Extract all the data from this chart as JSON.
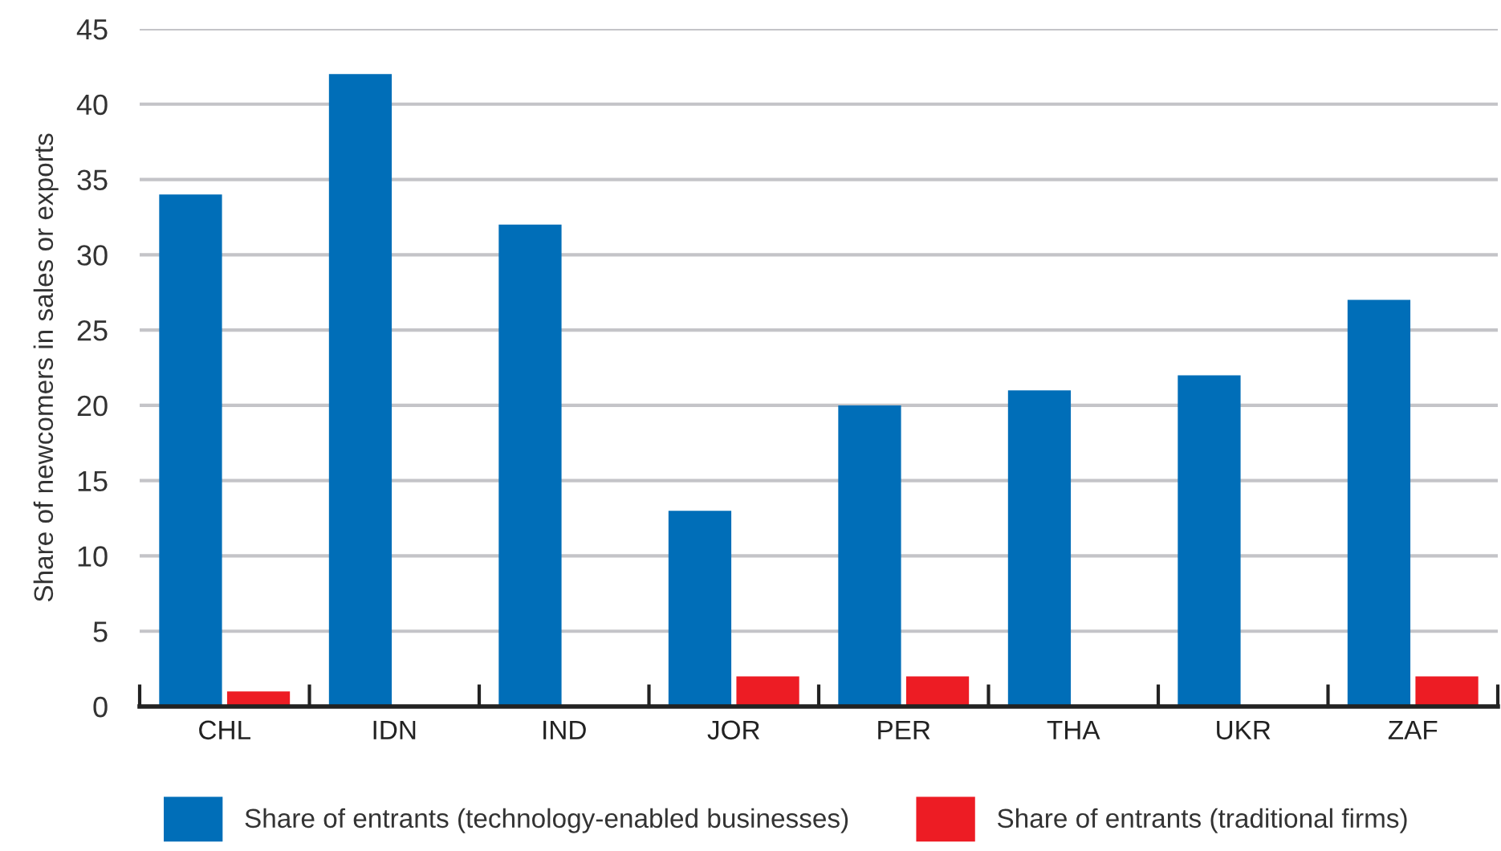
{
  "chart_data": {
    "type": "bar",
    "ylabel": "Share of newcomers in sales or exports",
    "categories": [
      "CHL",
      "IDN",
      "IND",
      "JOR",
      "PER",
      "THA",
      "UKR",
      "ZAF"
    ],
    "series": [
      {
        "name": "Share of entrants (technology-enabled businesses)",
        "color": "#006eb8",
        "values": [
          34,
          42,
          32,
          13,
          20,
          21,
          22,
          27
        ]
      },
      {
        "name": "Share of entrants (traditional firms)",
        "color": "#ed1c24",
        "values": [
          1,
          0,
          0,
          2,
          2,
          0,
          0,
          2
        ]
      }
    ],
    "ylim": [
      0,
      45
    ],
    "yticks": [
      0,
      5,
      10,
      15,
      20,
      25,
      30,
      35,
      40,
      45
    ],
    "grid": "y",
    "legend": "bottom"
  }
}
